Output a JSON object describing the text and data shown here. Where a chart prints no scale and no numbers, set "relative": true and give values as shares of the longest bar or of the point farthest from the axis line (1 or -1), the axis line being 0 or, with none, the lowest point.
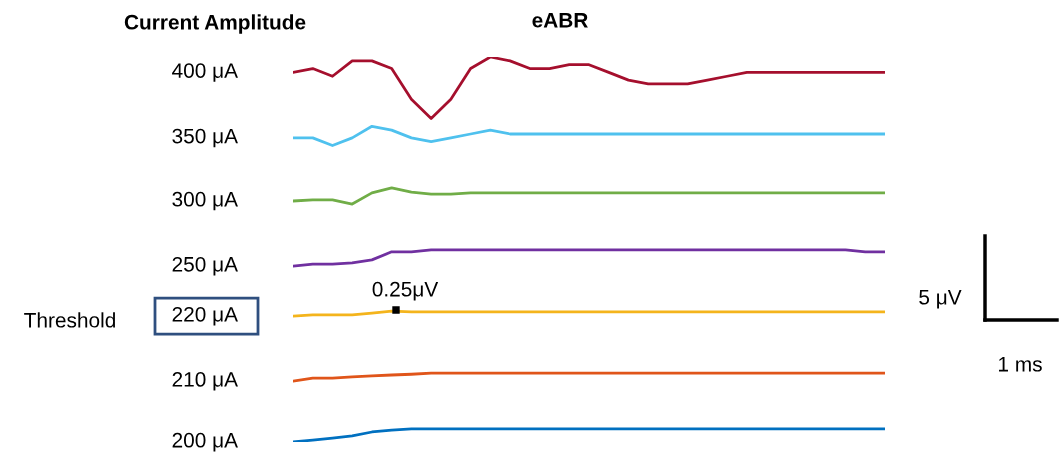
{
  "chart_data": {
    "type": "line",
    "title": "eABR",
    "relative": true,
    "legend": false,
    "categories": [
      null,
      null,
      null,
      null,
      null,
      null,
      null,
      null,
      null,
      null,
      null,
      null,
      null,
      null,
      null,
      null,
      null,
      null,
      null,
      null,
      null,
      null,
      null,
      null,
      null,
      null,
      null,
      null,
      null,
      null,
      null
    ],
    "annotations": [
      "Current Amplitude",
      "Threshold",
      "0.25μV",
      "5 μV",
      "1 ms"
    ],
    "series": [
      {
        "name": "400 μA",
        "color": "#a50f2d",
        "values": [
          0.96,
          0.97,
          0.95,
          0.99,
          0.99,
          0.97,
          0.89,
          0.84,
          0.89,
          0.97,
          1.0,
          0.99,
          0.97,
          0.97,
          0.98,
          0.98,
          0.96,
          0.94,
          0.93,
          0.93,
          0.93,
          0.94,
          0.95,
          0.96,
          0.96,
          0.96,
          0.96,
          0.96,
          0.96,
          0.96,
          0.96
        ]
      },
      {
        "name": "350 μA",
        "color": "#4fc1ee",
        "values": [
          0.79,
          0.79,
          0.77,
          0.79,
          0.82,
          0.81,
          0.79,
          0.78,
          0.79,
          0.8,
          0.81,
          0.8,
          0.8,
          0.8,
          0.8,
          0.8,
          0.8,
          0.8,
          0.8,
          0.8,
          0.8,
          0.8,
          0.8,
          0.8,
          0.8,
          0.8,
          0.8,
          0.8,
          0.8,
          0.8,
          0.8
        ]
      },
      {
        "name": "300 μA",
        "color": "#70ad47",
        "values": [
          0.626,
          0.629,
          0.629,
          0.618,
          0.647,
          0.66,
          0.649,
          0.644,
          0.644,
          0.647,
          0.647,
          0.647,
          0.647,
          0.647,
          0.647,
          0.647,
          0.647,
          0.647,
          0.647,
          0.647,
          0.647,
          0.647,
          0.647,
          0.647,
          0.647,
          0.647,
          0.647,
          0.647,
          0.647,
          0.647,
          0.647
        ]
      },
      {
        "name": "250 μA",
        "color": "#7030a0",
        "values": [
          0.457,
          0.462,
          0.462,
          0.465,
          0.473,
          0.494,
          0.494,
          0.499,
          0.499,
          0.499,
          0.499,
          0.499,
          0.499,
          0.499,
          0.499,
          0.499,
          0.499,
          0.499,
          0.499,
          0.499,
          0.499,
          0.499,
          0.499,
          0.499,
          0.499,
          0.499,
          0.499,
          0.499,
          0.499,
          0.494,
          0.494
        ]
      },
      {
        "name": "220 μA",
        "color": "#f4b41c",
        "values": [
          0.327,
          0.33,
          0.33,
          0.33,
          0.335,
          0.34,
          0.338,
          0.338,
          0.338,
          0.338,
          0.338,
          0.338,
          0.338,
          0.338,
          0.338,
          0.338,
          0.338,
          0.338,
          0.338,
          0.338,
          0.338,
          0.338,
          0.338,
          0.338,
          0.338,
          0.338,
          0.338,
          0.338,
          0.338,
          0.338,
          0.338
        ]
      },
      {
        "name": "210 μA",
        "color": "#e0551a",
        "values": [
          0.158,
          0.166,
          0.166,
          0.169,
          0.172,
          0.174,
          0.176,
          0.179,
          0.179,
          0.179,
          0.179,
          0.179,
          0.179,
          0.179,
          0.179,
          0.179,
          0.179,
          0.179,
          0.179,
          0.179,
          0.179,
          0.179,
          0.179,
          0.179,
          0.179,
          0.179,
          0.179,
          0.179,
          0.179,
          0.179,
          0.179
        ]
      },
      {
        "name": "200 μA",
        "color": "#0070c0",
        "values": [
          0.0,
          0.005,
          0.01,
          0.016,
          0.026,
          0.031,
          0.034,
          0.034,
          0.034,
          0.034,
          0.034,
          0.034,
          0.034,
          0.034,
          0.034,
          0.034,
          0.034,
          0.034,
          0.034,
          0.034,
          0.034,
          0.034,
          0.034,
          0.034,
          0.034,
          0.034,
          0.034,
          0.034,
          0.034,
          0.034,
          0.034
        ]
      }
    ]
  }
}
